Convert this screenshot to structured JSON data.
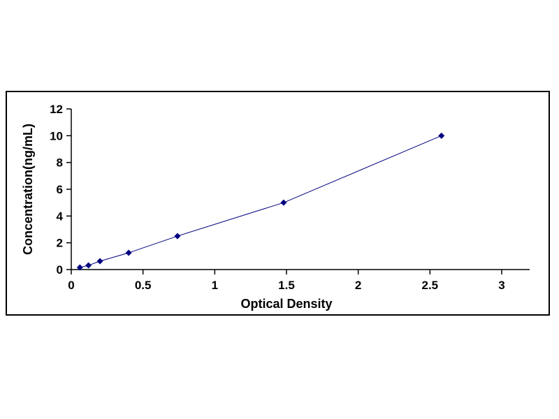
{
  "chart_data": {
    "type": "line",
    "title": "",
    "xlabel": "Optical Density",
    "ylabel": "Concentration(ng/mL)",
    "x": [
      0.06,
      0.12,
      0.2,
      0.4,
      0.74,
      1.48,
      2.58
    ],
    "y": [
      0.156,
      0.3125,
      0.625,
      1.25,
      2.5,
      5,
      10
    ],
    "xlim": [
      0,
      3
    ],
    "ylim": [
      0,
      12
    ],
    "x_ticks": [
      "0",
      "0.5",
      "1",
      "1.5",
      "2",
      "2.5",
      "3"
    ],
    "x_tick_values": [
      0,
      0.5,
      1,
      1.5,
      2,
      2.5,
      3
    ],
    "y_ticks": [
      "0",
      "2",
      "4",
      "6",
      "8",
      "10",
      "12"
    ],
    "y_tick_values": [
      0,
      2,
      4,
      6,
      8,
      10,
      12
    ],
    "series_color": "#000080",
    "axis_color": "#000000",
    "marker": "diamond",
    "grid": false,
    "legend": "none"
  }
}
